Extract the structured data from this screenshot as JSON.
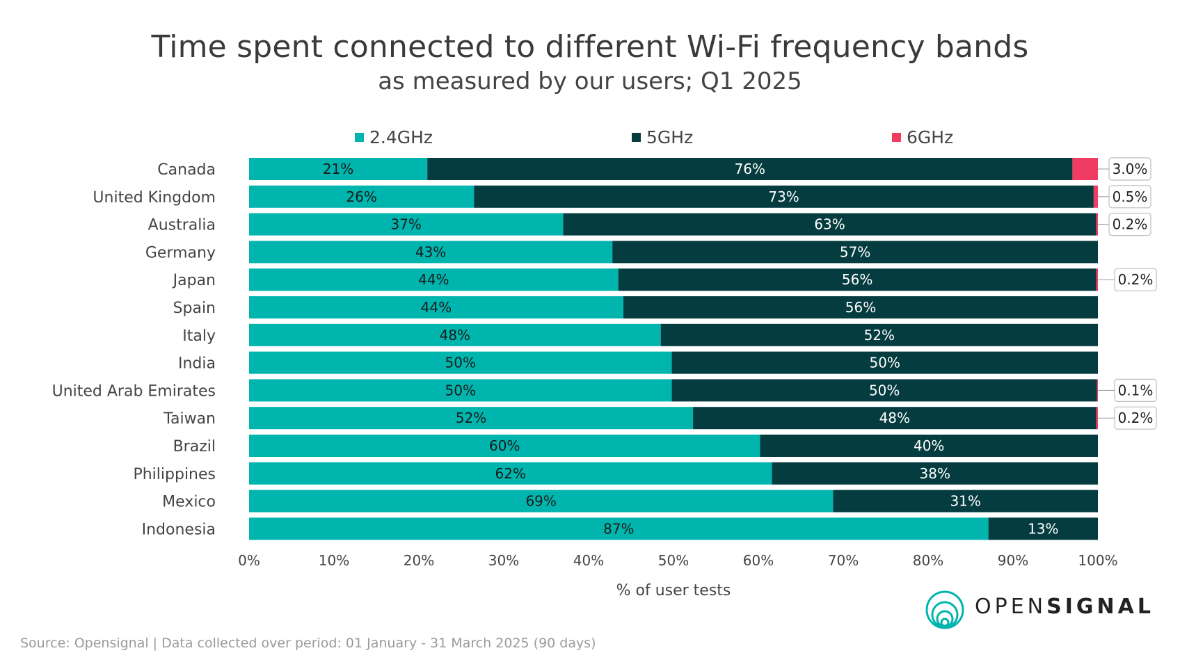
{
  "chart_data": {
    "type": "bar",
    "orientation": "horizontal",
    "stacked": true,
    "title": "Time spent connected to different Wi-Fi frequency bands",
    "subtitle": "as measured by our users; Q1 2025",
    "xlabel": "% of user tests",
    "ylabel": "",
    "xlim": [
      0,
      100
    ],
    "x_ticks": [
      "0%",
      "10%",
      "20%",
      "30%",
      "40%",
      "50%",
      "60%",
      "70%",
      "80%",
      "90%",
      "100%"
    ],
    "legend_position": "top",
    "categories": [
      "Canada",
      "United Kingdom",
      "Australia",
      "Germany",
      "Japan",
      "Spain",
      "Italy",
      "India",
      "United Arab Emirates",
      "Taiwan",
      "Brazil",
      "Philippines",
      "Mexico",
      "Indonesia"
    ],
    "series": [
      {
        "name": "2.4GHz",
        "color": "#00b5ad",
        "values": [
          21,
          26.5,
          37,
          42.8,
          43.5,
          44.1,
          48.5,
          49.8,
          49.8,
          52.3,
          60.2,
          61.6,
          68.8,
          87.1
        ],
        "labels": [
          "21%",
          "26%",
          "37%",
          "43%",
          "44%",
          "44%",
          "48%",
          "50%",
          "50%",
          "52%",
          "60%",
          "62%",
          "69%",
          "87%"
        ]
      },
      {
        "name": "5GHz",
        "color": "#053c40",
        "values": [
          76,
          73,
          62.8,
          57.2,
          56.3,
          55.9,
          51.5,
          50.2,
          50.1,
          47.5,
          39.8,
          38.4,
          31.2,
          12.9
        ],
        "labels": [
          "76%",
          "73%",
          "63%",
          "57%",
          "56%",
          "56%",
          "52%",
          "50%",
          "50%",
          "48%",
          "40%",
          "38%",
          "31%",
          "13%"
        ]
      },
      {
        "name": "6GHz",
        "color": "#f03c62",
        "values": [
          3.0,
          0.5,
          0.2,
          0,
          0.2,
          0,
          0,
          0,
          0.1,
          0.2,
          0,
          0,
          0,
          0
        ],
        "labels": [
          "3.0%",
          "0.5%",
          "0.2%",
          "",
          "0.2%",
          "",
          "",
          "",
          "0.1%",
          "0.2%",
          "",
          "",
          "",
          ""
        ]
      }
    ]
  },
  "footer": {
    "source": "Source: Opensignal  | Data collected over period: 01 January - 31 March 2025 (90 days)"
  },
  "logo": {
    "text_light": "OPEN",
    "text_bold": "SIGNAL",
    "icon": "opensignal-rings-icon",
    "color": "#00b5ad"
  }
}
